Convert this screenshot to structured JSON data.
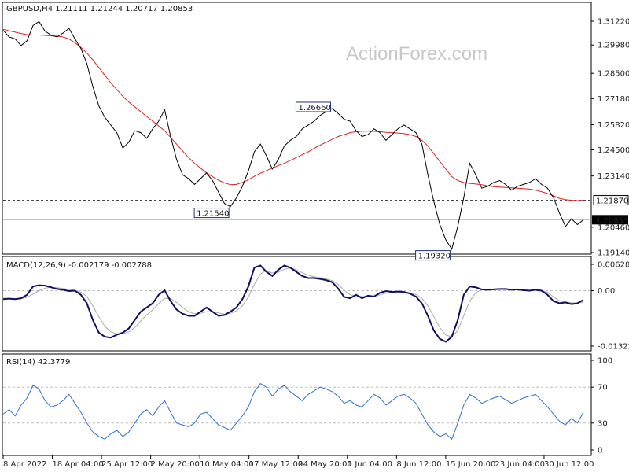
{
  "chart_data": [
    {
      "type": "line",
      "header": "GBPUSD,H4  1.21111 1.21244 1.20717 1.20853",
      "watermark": "ActionForex.com",
      "ylim": [
        1.1914,
        1.3122
      ],
      "y_ticks": [
        "1.31220",
        "1.29980",
        "1.28500",
        "1.27180",
        "1.25820",
        "1.24500",
        "1.23140",
        "1.20460",
        "1.19140"
      ],
      "last_price": "1.20853",
      "dashed_level": "1.21870",
      "annotations": [
        {
          "label": "1.26660",
          "value": 1.2666
        },
        {
          "label": "1.21540",
          "value": 1.2154
        },
        {
          "label": "1.19320",
          "value": 1.1932
        }
      ],
      "series": [
        {
          "role": "price",
          "color": "#000000",
          "values": [
            1.3075,
            1.304,
            1.303,
            1.2995,
            1.302,
            1.31,
            1.312,
            1.307,
            1.305,
            1.304,
            1.306,
            1.3085,
            1.303,
            1.298,
            1.29,
            1.278,
            1.268,
            1.262,
            1.258,
            1.254,
            1.246,
            1.249,
            1.255,
            1.254,
            1.251,
            1.256,
            1.26,
            1.266,
            1.252,
            1.24,
            1.232,
            1.23,
            1.227,
            1.23,
            1.233,
            1.229,
            1.223,
            1.217,
            1.2154,
            1.22,
            1.226,
            1.234,
            1.244,
            1.248,
            1.242,
            1.235,
            1.24,
            1.247,
            1.25,
            1.252,
            1.256,
            1.258,
            1.26,
            1.263,
            1.265,
            1.2666,
            1.264,
            1.261,
            1.26,
            1.255,
            1.252,
            1.253,
            1.256,
            1.254,
            1.25,
            1.253,
            1.256,
            1.258,
            1.256,
            1.254,
            1.248,
            1.232,
            1.218,
            1.206,
            1.198,
            1.1932,
            1.205,
            1.22,
            1.238,
            1.232,
            1.225,
            1.226,
            1.228,
            1.229,
            1.227,
            1.224,
            1.226,
            1.227,
            1.228,
            1.23,
            1.227,
            1.225,
            1.22,
            1.212,
            1.205,
            1.209,
            1.206,
            1.2085
          ]
        },
        {
          "role": "moving-average",
          "color": "#dd2222",
          "values": [
            1.308,
            1.3072,
            1.3065,
            1.3058,
            1.3052,
            1.305,
            1.305,
            1.3048,
            1.3046,
            1.3044,
            1.304,
            1.303,
            1.301,
            1.2985,
            1.2955,
            1.292,
            1.288,
            1.284,
            1.28,
            1.2765,
            1.273,
            1.27,
            1.2675,
            1.265,
            1.2625,
            1.26,
            1.2575,
            1.255,
            1.2515,
            1.248,
            1.2445,
            1.241,
            1.238,
            1.2355,
            1.233,
            1.231,
            1.2292,
            1.2278,
            1.2268,
            1.227,
            1.228,
            1.2295,
            1.2312,
            1.2328,
            1.2342,
            1.2355,
            1.2368,
            1.238,
            1.2395,
            1.241,
            1.2425,
            1.244,
            1.2458,
            1.2475,
            1.249,
            1.2505,
            1.252,
            1.253,
            1.254,
            1.2545,
            1.2548,
            1.2548,
            1.2547,
            1.2545,
            1.2542,
            1.254,
            1.2538,
            1.2535,
            1.253,
            1.252,
            1.25,
            1.247,
            1.243,
            1.239,
            1.235,
            1.231,
            1.229,
            1.228,
            1.2275,
            1.2272,
            1.2268,
            1.2262,
            1.2258,
            1.2256,
            1.2254,
            1.2252,
            1.225,
            1.2248,
            1.2245,
            1.224,
            1.2232,
            1.2222,
            1.221,
            1.2197,
            1.219,
            1.2187,
            1.2185,
            1.2187
          ]
        }
      ]
    },
    {
      "type": "line",
      "header": "MACD(12,26,9) -0.002179 -0.002788",
      "ylim": [
        -0.013223,
        0.006285
      ],
      "y_ticks": [
        "0.006285",
        "0.00",
        "-0.013223"
      ],
      "series": [
        {
          "role": "macd",
          "color": "#101060",
          "values": [
            -0.002,
            -0.0019,
            -0.002,
            -0.0018,
            -0.001,
            0.001,
            0.0013,
            0.0012,
            0.0008,
            0.0004,
            0.0002,
            -0.0001,
            0.0,
            -0.001,
            -0.003,
            -0.007,
            -0.01,
            -0.011,
            -0.0112,
            -0.0105,
            -0.01,
            -0.009,
            -0.007,
            -0.005,
            -0.004,
            -0.003,
            -0.001,
            0.0001,
            -0.0025,
            -0.0045,
            -0.0055,
            -0.006,
            -0.006,
            -0.005,
            -0.004,
            -0.005,
            -0.006,
            -0.0058,
            -0.005,
            -0.004,
            -0.002,
            0.001,
            0.0055,
            0.006,
            0.0045,
            0.0035,
            0.005,
            0.006,
            0.0055,
            0.0045,
            0.0035,
            0.003,
            0.003,
            0.0028,
            0.0025,
            0.002,
            0.0005,
            -0.0015,
            -0.0018,
            -0.001,
            -0.0018,
            -0.0012,
            -0.0014,
            -0.0005,
            -0.0001,
            -0.0003,
            -0.0002,
            -0.0003,
            -0.0007,
            -0.0014,
            -0.003,
            -0.006,
            -0.0095,
            -0.0115,
            -0.0122,
            -0.011,
            -0.007,
            -0.001,
            0.001,
            0.0008,
            0.0003,
            0.0002,
            0.0003,
            0.0004,
            0.0004,
            0.0002,
            0.0003,
            0.0001,
            0.0,
            0.0002,
            0.0,
            -0.001,
            -0.0025,
            -0.003,
            -0.0028,
            -0.0032,
            -0.003,
            -0.0022
          ]
        },
        {
          "role": "signal",
          "color": "#aaaaaa",
          "values": [
            -0.0018,
            -0.0018,
            -0.0019,
            -0.0019,
            -0.0016,
            -0.0008,
            0.0,
            0.0006,
            0.0008,
            0.0007,
            0.0005,
            0.0003,
            0.0001,
            -0.0004,
            -0.0014,
            -0.0036,
            -0.0062,
            -0.0085,
            -0.0098,
            -0.0103,
            -0.0103,
            -0.0098,
            -0.0088,
            -0.0072,
            -0.0058,
            -0.0046,
            -0.0031,
            -0.0018,
            -0.0019,
            -0.0028,
            -0.004,
            -0.005,
            -0.0055,
            -0.0054,
            -0.005,
            -0.005,
            -0.0053,
            -0.0056,
            -0.0054,
            -0.0048,
            -0.0036,
            -0.0015,
            0.0015,
            0.004,
            0.0048,
            0.0042,
            0.0044,
            0.0051,
            0.0054,
            0.005,
            0.0043,
            0.0037,
            0.0033,
            0.0031,
            0.0028,
            0.0024,
            0.0015,
            0.0001,
            -0.001,
            -0.0012,
            -0.0014,
            -0.0013,
            -0.0013,
            -0.001,
            -0.0006,
            -0.0004,
            -0.0003,
            -0.0003,
            -0.0005,
            -0.0009,
            -0.0018,
            -0.0036,
            -0.0062,
            -0.0088,
            -0.0106,
            -0.011,
            -0.0095,
            -0.006,
            -0.0025,
            -0.0005,
            0.0003,
            0.0003,
            0.0003,
            0.0003,
            0.0003,
            0.0003,
            0.0003,
            0.0002,
            0.0001,
            0.0001,
            0.0001,
            -0.0004,
            -0.0015,
            -0.0024,
            -0.0027,
            -0.0029,
            -0.0029,
            -0.0027
          ]
        }
      ]
    },
    {
      "type": "line",
      "header": "RSI(14) 42.3779",
      "ylim": [
        0,
        100
      ],
      "y_ticks": [
        "100",
        "70",
        "30",
        "0"
      ],
      "levels": [
        70,
        30
      ],
      "series": [
        {
          "role": "rsi",
          "color": "#3070d0",
          "values": [
            40,
            45,
            38,
            50,
            58,
            72,
            68,
            55,
            48,
            50,
            55,
            62,
            52,
            42,
            30,
            20,
            15,
            12,
            18,
            22,
            15,
            20,
            30,
            40,
            45,
            38,
            48,
            55,
            42,
            30,
            28,
            26,
            30,
            40,
            42,
            35,
            28,
            25,
            22,
            30,
            38,
            48,
            65,
            74,
            70,
            60,
            68,
            72,
            65,
            60,
            55,
            62,
            66,
            70,
            68,
            65,
            60,
            52,
            55,
            50,
            48,
            55,
            62,
            58,
            50,
            55,
            60,
            62,
            58,
            52,
            40,
            28,
            20,
            15,
            18,
            12,
            30,
            50,
            62,
            58,
            52,
            55,
            58,
            60,
            56,
            52,
            55,
            58,
            60,
            62,
            55,
            48,
            40,
            32,
            28,
            35,
            30,
            42
          ]
        }
      ]
    }
  ],
  "x_axis": {
    "labels": [
      "8 Apr 2022",
      "18 Apr 04:00",
      "25 Apr 12:00",
      "2 May 20:00",
      "10 May 04:00",
      "17 May 12:00",
      "24 May 20:00",
      "1 Jun 04:00",
      "8 Jun 12:00",
      "15 Jun 20:00",
      "23 Jun 04:00",
      "30 Jun 12:00"
    ]
  },
  "colors": {
    "price_tag_bg": "#000000",
    "price_tag_fg": "#ffffff",
    "label_box_border": "#203080"
  }
}
